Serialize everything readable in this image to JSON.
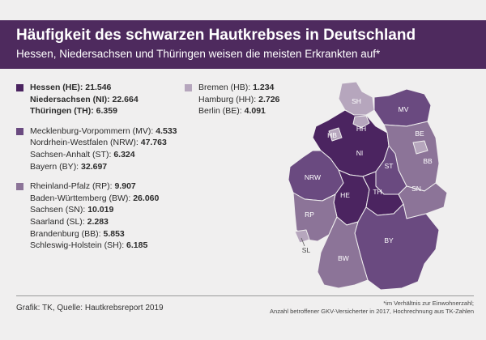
{
  "header": {
    "title": "Häufigkeit des schwarzen Hautkrebses in Deutschland",
    "subtitle": "Hessen, Niedersachsen und Thüringen weisen die meisten Erkrankten auf*"
  },
  "colors": {
    "header_bg": "#4e2a5e",
    "tier_1_darkest": "#4b2460",
    "tier_2": "#6a4a80",
    "tier_3": "#8c7498",
    "tier_4_lightest": "#b6a6bd"
  },
  "legend": {
    "group_1": {
      "color": "#4b2460",
      "items": [
        {
          "name": "Hessen (HE):",
          "value": "21.546"
        },
        {
          "name": "Niedersachsen (NI):",
          "value": "22.664"
        },
        {
          "name": "Thüringen (TH):",
          "value": "6.359"
        }
      ]
    },
    "group_2": {
      "color": "#6a4a80",
      "items": [
        {
          "name": "Mecklenburg-Vorpommern (MV):",
          "value": "4.533"
        },
        {
          "name": "Nordrhein-Westfalen (NRW):",
          "value": "47.763"
        },
        {
          "name": "Sachsen-Anhalt (ST):",
          "value": "6.324"
        },
        {
          "name": "Bayern (BY):",
          "value": "32.697"
        }
      ]
    },
    "group_3": {
      "color": "#8c7498",
      "items": [
        {
          "name": "Rheinland-Pfalz (RP):",
          "value": "9.907"
        },
        {
          "name": "Baden-Württemberg (BW):",
          "value": "26.060"
        },
        {
          "name": "Sachsen (SN):",
          "value": "10.019"
        },
        {
          "name": "Saarland (SL):",
          "value": "2.283"
        },
        {
          "name": "Brandenburg (BB):",
          "value": "5.853"
        },
        {
          "name": "Schleswig-Holstein (SH):",
          "value": "6.185"
        }
      ]
    },
    "group_4": {
      "color": "#b6a6bd",
      "items": [
        {
          "name": "Bremen (HB):",
          "value": "1.234"
        },
        {
          "name": "Hamburg (HH):",
          "value": "2.726"
        },
        {
          "name": "Berlin (BE):",
          "value": "4.091"
        }
      ]
    }
  },
  "map_labels": {
    "SH": "SH",
    "MV": "MV",
    "HH": "HH",
    "HB": "HB",
    "NI": "NI",
    "BE": "BE",
    "BB": "BB",
    "ST": "ST",
    "NRW": "NRW",
    "SN": "SN",
    "HE": "HE",
    "TH": "TH",
    "RP": "RP",
    "SL": "SL",
    "BY": "BY",
    "BW": "BW"
  },
  "footer": {
    "source": "Grafik: TK, Quelle: Hautkrebsreport 2019",
    "footnote_line1": "*im Verhältnis zur Einwohnerzahl;",
    "footnote_line2": "Anzahl betroffener GKV-Versicherter in 2017, Hochrechnung aus TK-Zahlen"
  }
}
